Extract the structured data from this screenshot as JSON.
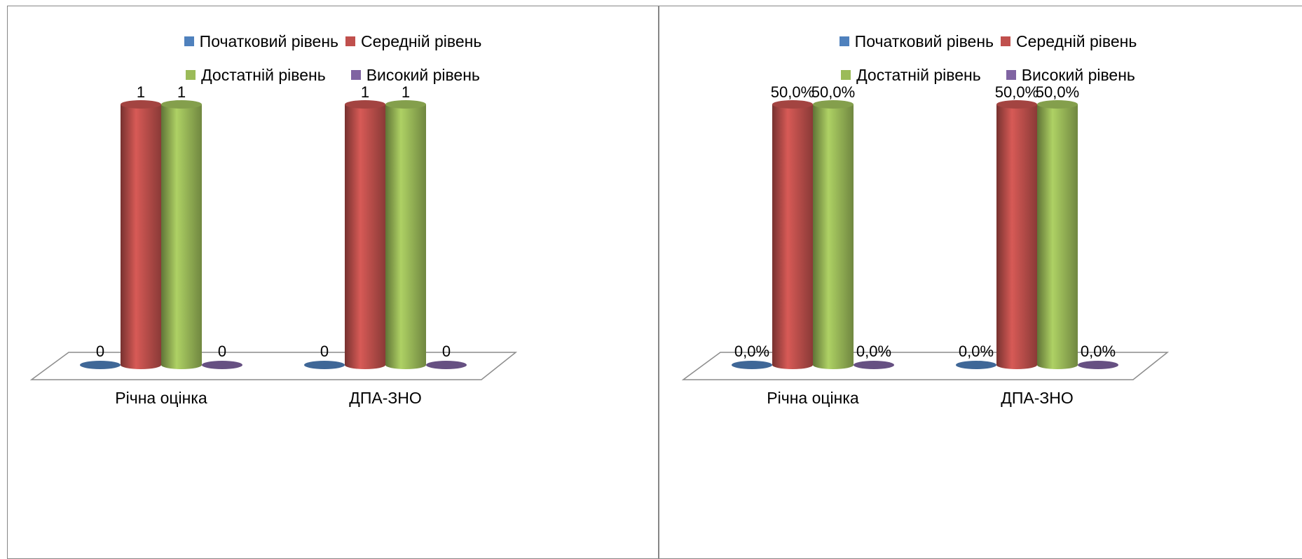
{
  "charts": [
    {
      "legend": [
        {
          "name": "Початковий рівень",
          "color": "#4f81bd"
        },
        {
          "name": "Середній рівень",
          "color": "#c0504d"
        },
        {
          "name": "Достатній рівень",
          "color": "#9bbb59"
        },
        {
          "name": "Високий рівень",
          "color": "#8064a2"
        }
      ]
    },
    {
      "legend": [
        {
          "name": "Початковий рівень",
          "color": "#4f81bd"
        },
        {
          "name": "Середній рівень",
          "color": "#c0504d"
        },
        {
          "name": "Достатній рівень",
          "color": "#9bbb59"
        },
        {
          "name": "Високий рівень",
          "color": "#8064a2"
        }
      ]
    }
  ],
  "chart_data": [
    {
      "type": "bar",
      "style": "3d-cylinder",
      "categories": [
        "Річна оцінка",
        "ДПА-ЗНО"
      ],
      "series": [
        {
          "name": "Початковий рівень",
          "values": [
            0,
            0
          ],
          "labels": [
            "0",
            "0"
          ],
          "color": "#4f81bd"
        },
        {
          "name": "Середній рівень",
          "values": [
            1,
            1
          ],
          "labels": [
            "1",
            "1"
          ],
          "color": "#c0504d"
        },
        {
          "name": "Достатній рівень",
          "values": [
            1,
            1
          ],
          "labels": [
            "1",
            "1"
          ],
          "color": "#9bbb59"
        },
        {
          "name": "Високий рівень",
          "values": [
            0,
            0
          ],
          "labels": [
            "0",
            "0"
          ],
          "color": "#8064a2"
        }
      ],
      "ylim": [
        0,
        1
      ],
      "legend_position": "top",
      "grid": false
    },
    {
      "type": "bar",
      "style": "3d-cylinder",
      "categories": [
        "Річна оцінка",
        "ДПА-ЗНО"
      ],
      "series": [
        {
          "name": "Початковий рівень",
          "values": [
            0,
            0
          ],
          "labels": [
            "0,0%",
            "0,0%"
          ],
          "color": "#4f81bd"
        },
        {
          "name": "Середній рівень",
          "values": [
            50,
            50
          ],
          "labels": [
            "50,0%",
            "50,0%"
          ],
          "color": "#c0504d"
        },
        {
          "name": "Достатній рівень",
          "values": [
            50,
            50
          ],
          "labels": [
            "50,0%",
            "50,0%"
          ],
          "color": "#9bbb59"
        },
        {
          "name": "Високий рівень",
          "values": [
            0,
            0
          ],
          "labels": [
            "0,0%",
            "0,0%"
          ],
          "color": "#8064a2"
        }
      ],
      "ylim": [
        0,
        50
      ],
      "legend_position": "top",
      "grid": false
    }
  ]
}
